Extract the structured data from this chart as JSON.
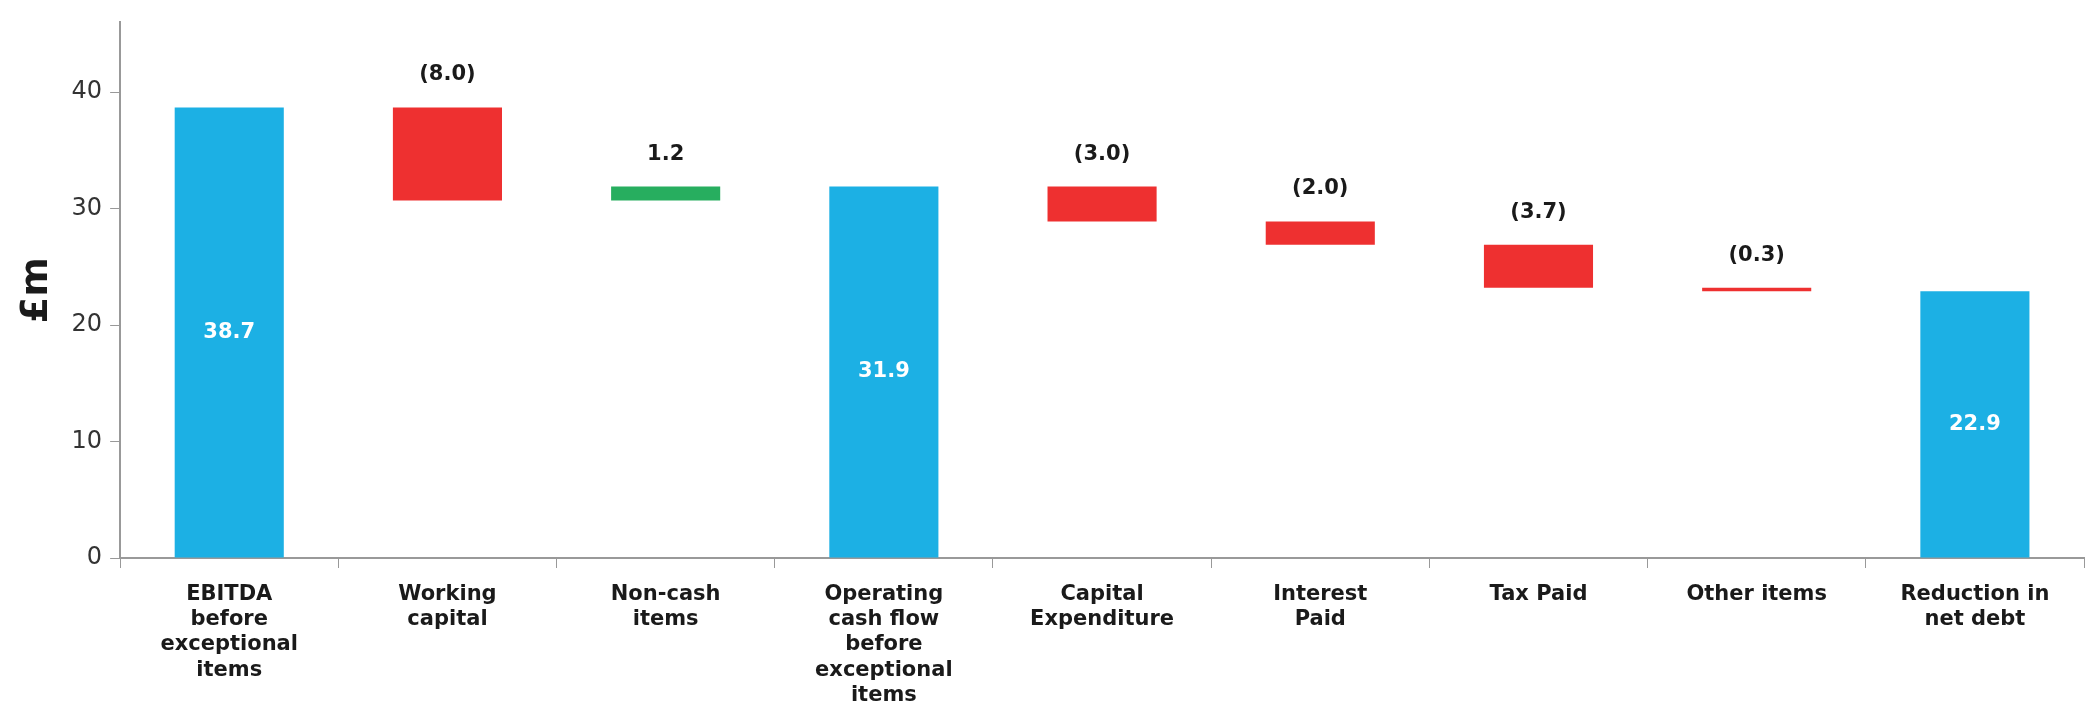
{
  "chart_data": {
    "type": "bar",
    "ylabel": "£m",
    "categories": [
      "EBITDA before exceptional items",
      "Working capital",
      "Non-cash items",
      "Operating cash flow before exceptional items",
      "Capital Expenditure",
      "Interest Paid",
      "Tax Paid",
      "Other items",
      "Reduction in net debt"
    ],
    "base": [
      0,
      38.7,
      30.7,
      0,
      31.9,
      28.9,
      26.9,
      23.2,
      0
    ],
    "values": [
      38.7,
      -8.0,
      1.2,
      31.9,
      -3.0,
      -2.0,
      -3.7,
      -0.3,
      22.9
    ],
    "colors": [
      "#1cb0e4",
      "#ee3030",
      "#27ae5f",
      "#1cb0e4",
      "#ee3030",
      "#ee3030",
      "#ee3030",
      "#ee3030",
      "#1cb0e4"
    ],
    "value_labels": [
      "38.7",
      "(8.0)",
      "1.2",
      "31.9",
      "(3.0)",
      "(2.0)",
      "(3.7)",
      "(0.3)",
      "22.9"
    ],
    "ylim": [
      0,
      46
    ],
    "yticks": [
      0,
      10,
      20,
      30,
      40
    ],
    "grid": false,
    "legend": false
  }
}
